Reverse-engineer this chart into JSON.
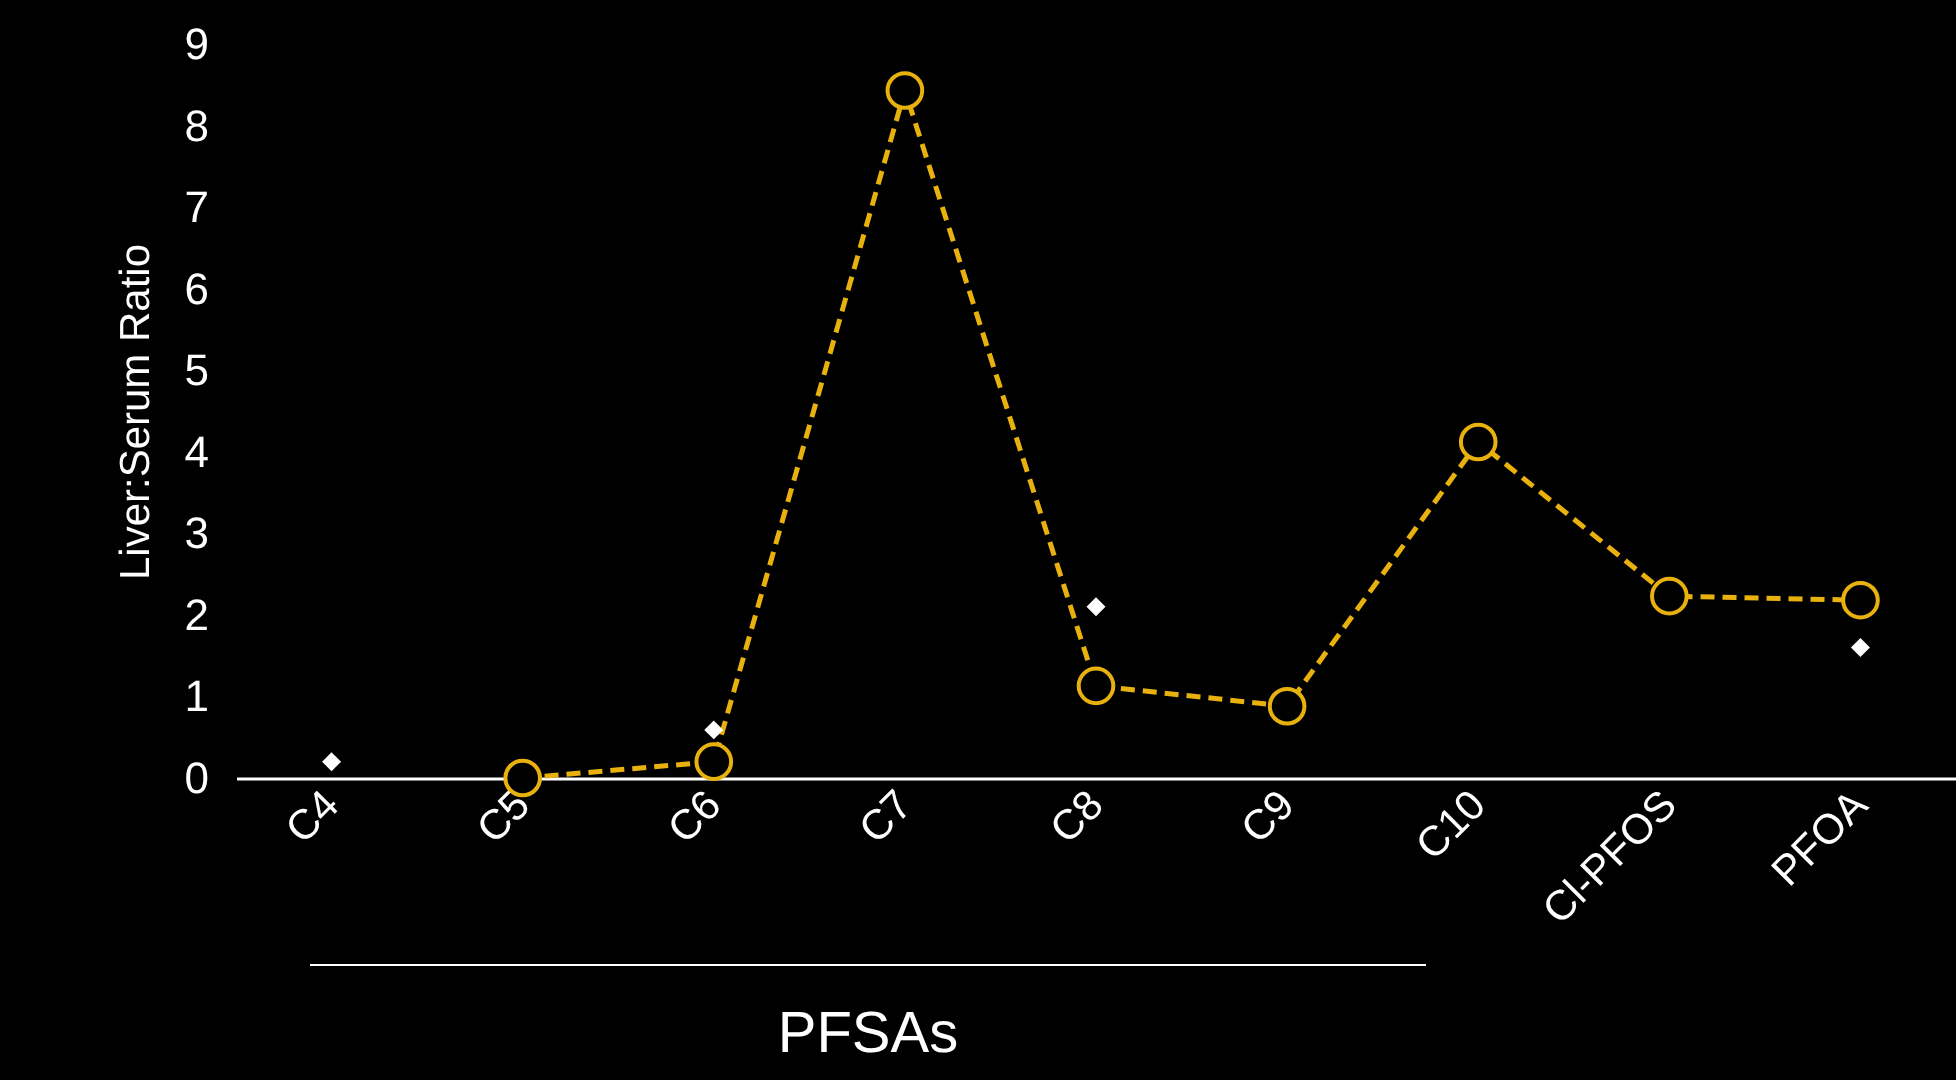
{
  "chart_data": {
    "type": "line",
    "ylabel": "Liver:Serum Ratio",
    "categories": [
      "C4",
      "C5",
      "C6",
      "C7",
      "C8",
      "C9",
      "C10",
      "Cl-PFOS",
      "PFOA"
    ],
    "ylim": [
      0,
      9
    ],
    "yticks": [
      0,
      1,
      2,
      3,
      4,
      5,
      6,
      7,
      8,
      9
    ],
    "grid": false,
    "series": [
      {
        "marker": "circle",
        "line_style": "dashed",
        "color": "#e8b10e",
        "values": [
          null,
          0.0,
          0.2,
          8.43,
          1.13,
          0.88,
          4.12,
          2.23,
          2.18
        ]
      },
      {
        "type": "scatter",
        "marker": "diamond",
        "color": "#ffffff",
        "values": [
          0.2,
          null,
          0.59,
          null,
          2.1,
          null,
          null,
          null,
          1.6
        ]
      }
    ],
    "annotations": [
      "PFSAs"
    ]
  }
}
